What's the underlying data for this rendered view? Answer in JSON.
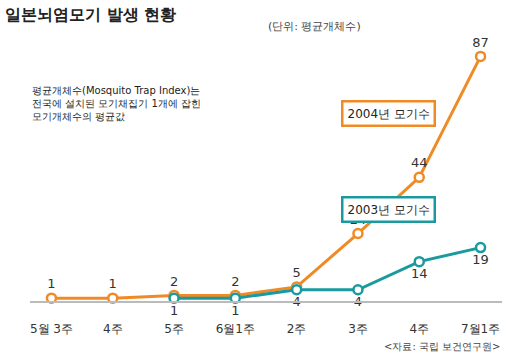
{
  "chart_data": {
    "type": "line",
    "title": "일본뇌염모기 발생 현황",
    "subtitle": "(단위: 평균개체수)",
    "annotations": {
      "note": [
        "평균개체수(Mosquito Trap Index)는",
        "전국에 설치된 모기채집기 1개에 잡힌",
        "모기개체수의 평균값"
      ],
      "source": "<자료: 국립 보건연구원>"
    },
    "categories": [
      "5월 3주",
      "4주",
      "5주",
      "6월1주",
      "2주",
      "3주",
      "4주",
      "7월1주"
    ],
    "series": [
      {
        "name": "2004년 모기수",
        "color": "#f08a24",
        "values": [
          1,
          1,
          2,
          2,
          5,
          24,
          44,
          87
        ]
      },
      {
        "name": "2003년 모기수",
        "color": "#1a9a9e",
        "values": [
          null,
          null,
          1,
          1,
          4,
          4,
          14,
          19
        ]
      }
    ],
    "ylim": [
      0,
      90
    ],
    "tick_labels": "x",
    "grid": false,
    "data_labels": true,
    "marker": "circle",
    "line_style": "solid"
  }
}
